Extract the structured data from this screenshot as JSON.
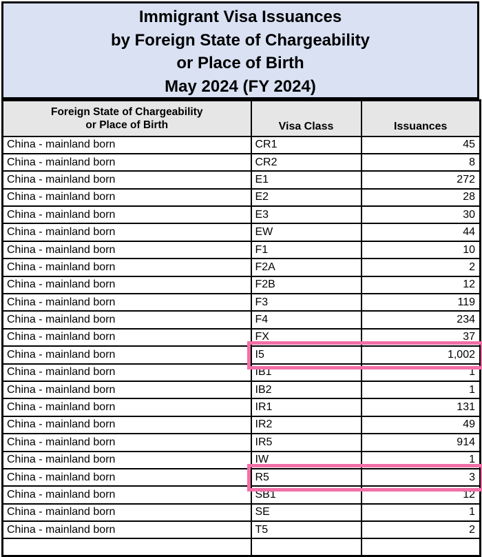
{
  "title": {
    "lines": [
      "Immigrant Visa Issuances",
      "by Foreign State of Chargeability",
      "or Place of Birth",
      "May 2024 (FY 2024)"
    ]
  },
  "table": {
    "header": {
      "place_line1": "Foreign State of Chargeability",
      "place_line2": "or Place of Birth",
      "visa_class": "Visa Class",
      "issuances": "Issuances"
    },
    "rows": [
      {
        "place": "China - mainland born",
        "visa_class": "CR1",
        "issuances": "45",
        "highlighted": false
      },
      {
        "place": "China - mainland born",
        "visa_class": "CR2",
        "issuances": "8",
        "highlighted": false
      },
      {
        "place": "China - mainland born",
        "visa_class": "E1",
        "issuances": "272",
        "highlighted": false
      },
      {
        "place": "China - mainland born",
        "visa_class": "E2",
        "issuances": "28",
        "highlighted": false
      },
      {
        "place": "China - mainland born",
        "visa_class": "E3",
        "issuances": "30",
        "highlighted": false
      },
      {
        "place": "China - mainland born",
        "visa_class": "EW",
        "issuances": "44",
        "highlighted": false
      },
      {
        "place": "China - mainland born",
        "visa_class": "F1",
        "issuances": "10",
        "highlighted": false
      },
      {
        "place": "China - mainland born",
        "visa_class": "F2A",
        "issuances": "2",
        "highlighted": false
      },
      {
        "place": "China - mainland born",
        "visa_class": "F2B",
        "issuances": "12",
        "highlighted": false
      },
      {
        "place": "China - mainland born",
        "visa_class": "F3",
        "issuances": "119",
        "highlighted": false
      },
      {
        "place": "China - mainland born",
        "visa_class": "F4",
        "issuances": "234",
        "highlighted": false
      },
      {
        "place": "China - mainland born",
        "visa_class": "FX",
        "issuances": "37",
        "highlighted": false
      },
      {
        "place": "China - mainland born",
        "visa_class": "I5",
        "issuances": "1,002",
        "highlighted": true
      },
      {
        "place": "China - mainland born",
        "visa_class": "IB1",
        "issuances": "1",
        "highlighted": false
      },
      {
        "place": "China - mainland born",
        "visa_class": "IB2",
        "issuances": "1",
        "highlighted": false
      },
      {
        "place": "China - mainland born",
        "visa_class": "IR1",
        "issuances": "131",
        "highlighted": false
      },
      {
        "place": "China - mainland born",
        "visa_class": "IR2",
        "issuances": "49",
        "highlighted": false
      },
      {
        "place": "China - mainland born",
        "visa_class": "IR5",
        "issuances": "914",
        "highlighted": false
      },
      {
        "place": "China - mainland born",
        "visa_class": "IW",
        "issuances": "1",
        "highlighted": false
      },
      {
        "place": "China - mainland born",
        "visa_class": "R5",
        "issuances": "3",
        "highlighted": true
      },
      {
        "place": "China - mainland born",
        "visa_class": "SB1",
        "issuances": "12",
        "highlighted": false
      },
      {
        "place": "China - mainland born",
        "visa_class": "SE",
        "issuances": "1",
        "highlighted": false
      },
      {
        "place": "China - mainland born",
        "visa_class": "T5",
        "issuances": "2",
        "highlighted": false
      }
    ]
  },
  "colors": {
    "title_bg": "#D9E1F3",
    "header_bg": "#E6E6E6",
    "highlight": "#F26FA7",
    "border": "#000000"
  }
}
